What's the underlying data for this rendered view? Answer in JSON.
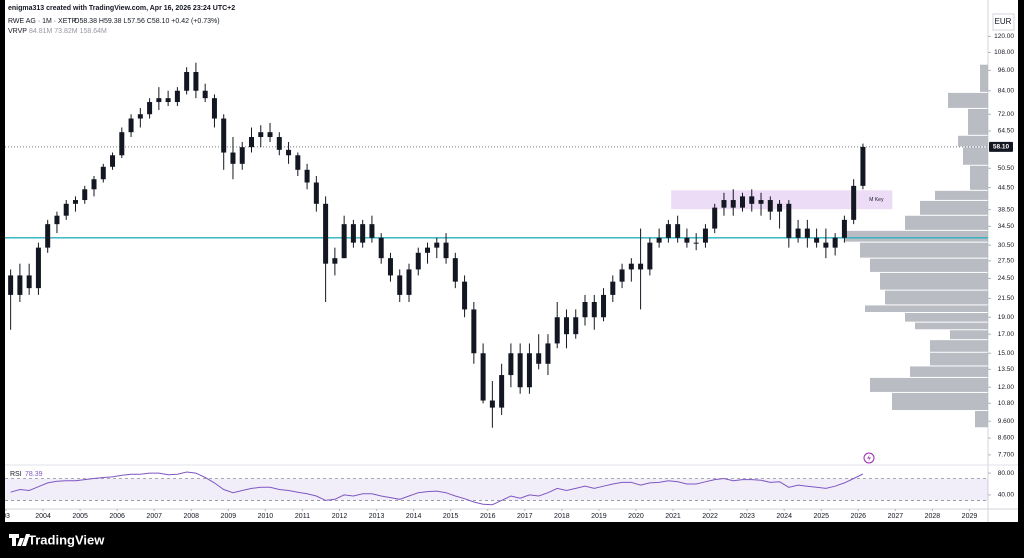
{
  "chart_data": {
    "type": "candlestick",
    "watermark": "enigma313 created with TradingView.com, Apr 16, 2026 23:24 UTC+2",
    "symbol": "RWE AG · 1M · XETR",
    "ohlc_legend": "O58.38 H59.38 L57.56 C58.10 +0.42 (+0.73%)",
    "vrvp_name": "VRVP",
    "vrvp_values": "84.81M 73.82M 158.64M",
    "currency": "EUR",
    "brand": "TradingView",
    "log_scale": true,
    "candle_color": "#131722",
    "x": [
      2003.125,
      2003.375,
      2003.625,
      2003.875,
      2004.125,
      2004.375,
      2004.625,
      2004.875,
      2005.125,
      2005.375,
      2005.625,
      2005.875,
      2006.125,
      2006.375,
      2006.625,
      2006.875,
      2007.125,
      2007.375,
      2007.625,
      2007.875,
      2008.125,
      2008.375,
      2008.625,
      2008.875,
      2009.125,
      2009.375,
      2009.625,
      2009.875,
      2010.125,
      2010.375,
      2010.625,
      2010.875,
      2011.125,
      2011.375,
      2011.625,
      2011.875,
      2012.125,
      2012.375,
      2012.625,
      2012.875,
      2013.125,
      2013.375,
      2013.625,
      2013.875,
      2014.125,
      2014.375,
      2014.625,
      2014.875,
      2015.125,
      2015.375,
      2015.625,
      2015.875,
      2016.125,
      2016.375,
      2016.625,
      2016.875,
      2017.125,
      2017.375,
      2017.625,
      2017.875,
      2018.125,
      2018.375,
      2018.625,
      2018.875,
      2019.125,
      2019.375,
      2019.625,
      2019.875,
      2020.125,
      2020.375,
      2020.625,
      2020.875,
      2021.125,
      2021.375,
      2021.625,
      2021.875,
      2022.125,
      2022.375,
      2022.625,
      2022.875,
      2023.125,
      2023.375,
      2023.625,
      2023.875,
      2024.125,
      2024.375,
      2024.625,
      2024.875,
      2025.125,
      2025.375,
      2025.625,
      2025.875,
      2026.125
    ],
    "open": [
      25,
      22,
      25,
      23,
      30,
      35,
      37,
      40,
      41,
      44,
      47,
      51,
      55,
      64,
      70,
      72,
      78,
      80,
      78,
      84,
      95,
      84,
      80,
      70,
      56,
      52,
      58,
      62,
      64,
      62,
      57,
      55,
      50,
      46,
      40,
      27,
      28,
      35,
      31,
      35,
      32,
      28,
      25,
      22,
      26,
      29,
      30,
      31,
      28,
      24,
      20,
      15,
      11,
      10.5,
      13,
      15,
      12,
      15,
      14,
      16,
      19,
      17,
      19,
      21,
      19,
      22,
      24,
      26,
      27,
      26,
      31,
      32,
      35,
      32,
      31,
      31,
      34,
      39,
      41,
      39,
      42,
      40,
      41,
      38,
      40,
      32,
      34,
      32,
      31,
      30,
      32,
      36,
      45
    ],
    "high": [
      26,
      27,
      27,
      31,
      36,
      38,
      41,
      42,
      45,
      48,
      52,
      56,
      66,
      72,
      75,
      80,
      86,
      84,
      86,
      98,
      101,
      88,
      82,
      72,
      62,
      60,
      66,
      67,
      68,
      64,
      60,
      56,
      52,
      48,
      42,
      30,
      37,
      36,
      36,
      37,
      33,
      29,
      26,
      27,
      30,
      31,
      32,
      33,
      29,
      25,
      21,
      16,
      12.5,
      14,
      16,
      16,
      16,
      17,
      17,
      21,
      20,
      20,
      22,
      22,
      23,
      25,
      27,
      28,
      34,
      32,
      34,
      36,
      37,
      34,
      33,
      35,
      40,
      43,
      44,
      43,
      44,
      43,
      42,
      41,
      41,
      36,
      36,
      34,
      34,
      33,
      37,
      47,
      59.38
    ],
    "low": [
      17.5,
      21,
      22,
      22,
      29,
      33,
      36,
      38,
      40,
      42,
      46,
      50,
      54,
      62,
      66,
      70,
      74,
      76,
      76,
      82,
      80,
      78,
      66,
      50,
      47,
      50,
      56,
      58,
      60,
      55,
      52,
      48,
      44,
      38,
      21,
      25,
      28,
      30,
      30,
      31,
      27,
      24,
      21,
      21,
      25,
      27,
      28,
      27,
      23,
      19,
      14,
      10.8,
      9.2,
      10,
      12,
      11.5,
      11.5,
      13.5,
      13,
      15.5,
      15.5,
      16.5,
      18,
      17.5,
      18.5,
      21,
      23,
      24,
      20,
      25,
      30,
      31,
      31,
      30,
      29.5,
      30,
      33,
      37,
      37,
      38,
      38,
      37,
      36,
      34,
      30,
      31,
      30,
      30,
      28,
      28.5,
      31,
      35,
      44
    ],
    "close": [
      22,
      25,
      23,
      30,
      35,
      37,
      40,
      41,
      44,
      47,
      51,
      55,
      64,
      70,
      72,
      78,
      80,
      78,
      84,
      95,
      84,
      80,
      70,
      56,
      52,
      58,
      62,
      64,
      62,
      57,
      55,
      50,
      46,
      40,
      27,
      28,
      35,
      31,
      35,
      32,
      28,
      25,
      22,
      26,
      29,
      30,
      31,
      28,
      24,
      20,
      15,
      11,
      10.5,
      13,
      15,
      12,
      15,
      14,
      16,
      19,
      17,
      19,
      21,
      19,
      22,
      24,
      26,
      27,
      26,
      31,
      32,
      35,
      32,
      31,
      31,
      34,
      39,
      41,
      39,
      42,
      40,
      41,
      38,
      40,
      32,
      34,
      32,
      31,
      30,
      32,
      36,
      45,
      58.1
    ],
    "xlim": [
      2003.0,
      2029.5
    ],
    "xticks": [
      {
        "value": 2003,
        "label": "03"
      },
      2004,
      2005,
      2006,
      2007,
      2008,
      2009,
      2010,
      2011,
      2012,
      2013,
      2014,
      2015,
      2016,
      2017,
      2018,
      2019,
      2020,
      2021,
      2022,
      2023,
      2024,
      2025,
      2026,
      2027,
      2028,
      2029
    ],
    "ylim": [
      7.3,
      139
    ],
    "yticks": [
      {
        "value": 120,
        "label": "120.00"
      },
      {
        "value": 108,
        "label": "108.00"
      },
      {
        "value": 96,
        "label": "96.00"
      },
      {
        "value": 84,
        "label": "84.00"
      },
      {
        "value": 72,
        "label": "72.00"
      },
      {
        "value": 64.5,
        "label": "64.50"
      },
      {
        "value": 50.5,
        "label": "50.50"
      },
      {
        "value": 44.5,
        "label": "44.50"
      },
      {
        "value": 38.5,
        "label": "38.50"
      },
      {
        "value": 34.5,
        "label": "34.50"
      },
      {
        "value": 30.5,
        "label": "30.50"
      },
      {
        "value": 27.5,
        "label": "27.50"
      },
      {
        "value": 24.5,
        "label": "24.50"
      },
      {
        "value": 21.5,
        "label": "21.50"
      },
      {
        "value": 19,
        "label": "19.00"
      },
      {
        "value": 17,
        "label": "17.00"
      },
      {
        "value": 15,
        "label": "15.00"
      },
      {
        "value": 13.5,
        "label": "13.50"
      },
      {
        "value": 12,
        "label": "12.00"
      },
      {
        "value": 10.8,
        "label": "10.80"
      },
      {
        "value": 9.6,
        "label": "9.600"
      },
      {
        "value": 8.6,
        "label": "8.600"
      },
      {
        "value": 7.7,
        "label": "7.700"
      }
    ],
    "last_price": {
      "value": 58.1,
      "label": "58.10"
    },
    "horizontal_line": {
      "value": 32.0,
      "color": "#2ab0bf"
    },
    "zone": {
      "label": "M Key",
      "x": [
        2020.95,
        2026.92
      ],
      "y": [
        38.6,
        43.7
      ],
      "color": "#eddcf5"
    },
    "volume_profile": {
      "bins": [
        100.0,
        83.1,
        74.8,
        62.7,
        58.1,
        51.5,
        43.7,
        40.9,
        37.1,
        33.6,
        31.1,
        28.0,
        25.5,
        22.7,
        20.6,
        19.6,
        18.4,
        17.5,
        16.4,
        15.1,
        13.8,
        12.8,
        11.6,
        10.3,
        9.2
      ],
      "values": [
        8,
        40,
        20,
        30,
        25,
        18,
        53,
        68,
        83,
        143,
        128,
        118,
        108,
        103,
        123,
        83,
        73,
        38,
        58,
        58,
        78,
        118,
        96,
        13
      ],
      "xlim": [
        0,
        150
      ],
      "color": "#b2b5be"
    },
    "rsi": {
      "name": "RSI",
      "value_label": "78.39",
      "color": "#7e57c2",
      "values": [
        45,
        50,
        48,
        55,
        62,
        65,
        66,
        66,
        68,
        70,
        72,
        73,
        76,
        78,
        78,
        80,
        80,
        77,
        78,
        82,
        80,
        72,
        62,
        50,
        44,
        48,
        52,
        54,
        54,
        50,
        48,
        45,
        42,
        38,
        30,
        32,
        40,
        38,
        42,
        42,
        38,
        35,
        32,
        38,
        44,
        46,
        47,
        44,
        38,
        33,
        27,
        23,
        22,
        30,
        38,
        34,
        40,
        38,
        44,
        52,
        48,
        52,
        56,
        52,
        56,
        60,
        63,
        63,
        58,
        62,
        63,
        66,
        64,
        60,
        60,
        64,
        68,
        70,
        66,
        68,
        68,
        67,
        63,
        64,
        54,
        58,
        56,
        54,
        52,
        56,
        62,
        70,
        78.39
      ],
      "ylim": [
        16,
        93
      ],
      "yticks": [
        {
          "value": 80,
          "label": "80.00"
        },
        {
          "value": 40,
          "label": "40.00"
        }
      ],
      "band": [
        30,
        70
      ]
    }
  }
}
